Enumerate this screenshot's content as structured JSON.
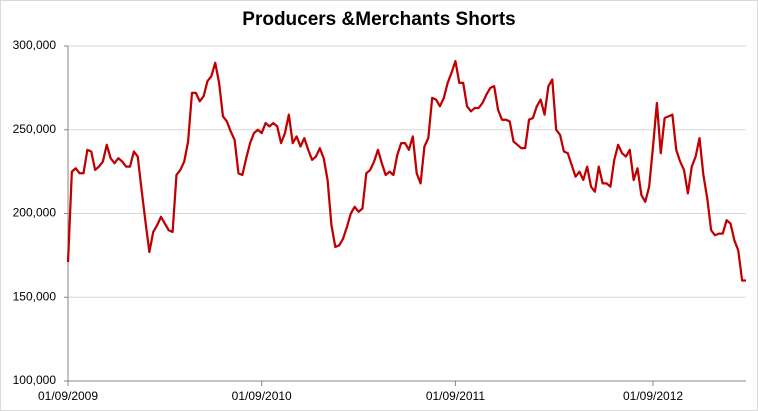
{
  "chart_data": {
    "type": "line",
    "title": "Producers &Merchants Shorts",
    "categories": [
      "01/09/2009",
      null,
      null,
      null,
      null,
      null,
      null,
      null,
      null,
      null,
      null,
      null,
      null,
      null,
      null,
      null,
      null,
      null,
      null,
      null,
      null,
      null,
      null,
      null,
      null,
      null,
      null,
      null,
      null,
      null,
      null,
      null,
      null,
      null,
      null,
      null,
      null,
      null,
      null,
      null,
      null,
      null,
      null,
      null,
      null,
      null,
      null,
      null,
      null,
      null,
      "01/09/2010",
      null,
      null,
      null,
      null,
      null,
      null,
      null,
      null,
      null,
      null,
      null,
      null,
      null,
      null,
      null,
      null,
      null,
      null,
      null,
      null,
      null,
      null,
      null,
      null,
      null,
      null,
      null,
      null,
      null,
      null,
      null,
      null,
      null,
      null,
      null,
      null,
      null,
      null,
      null,
      null,
      null,
      null,
      null,
      null,
      null,
      null,
      null,
      null,
      null,
      "01/09/2011",
      null,
      null,
      null,
      null,
      null,
      null,
      null,
      null,
      null,
      null,
      null,
      null,
      null,
      null,
      null,
      null,
      null,
      null,
      null,
      null,
      null,
      null,
      null,
      null,
      null,
      null,
      null,
      null,
      null,
      null,
      null,
      null,
      null,
      null,
      null,
      null,
      null,
      null,
      null,
      null,
      null,
      null,
      null,
      null,
      null,
      null,
      null,
      null,
      null,
      null,
      "01/09/2012",
      null,
      null,
      null,
      null,
      null,
      null,
      null,
      null,
      null,
      null,
      null,
      null,
      null,
      null,
      null,
      null,
      null,
      null,
      null,
      null,
      null,
      null,
      null,
      null
    ],
    "series": [
      {
        "color": "#c00000",
        "values": [
          171000,
          225000,
          227000,
          224000,
          224000,
          238000,
          237000,
          226000,
          228000,
          231000,
          241000,
          233000,
          230000,
          233000,
          231000,
          228000,
          228000,
          237000,
          234000,
          214000,
          195000,
          177000,
          189000,
          193000,
          198000,
          194000,
          190000,
          189000,
          223000,
          226000,
          231000,
          243000,
          272000,
          272000,
          267000,
          270000,
          279000,
          282000,
          290000,
          278000,
          258000,
          255000,
          249000,
          244000,
          224000,
          223000,
          233000,
          242000,
          248000,
          250000,
          248000,
          254000,
          252000,
          254000,
          252000,
          242000,
          248000,
          259000,
          242000,
          246000,
          240000,
          245000,
          238000,
          232000,
          234000,
          239000,
          233000,
          220000,
          193000,
          180000,
          181000,
          185000,
          192000,
          200000,
          204000,
          201000,
          203000,
          224000,
          226000,
          231000,
          238000,
          230000,
          223000,
          225000,
          223000,
          235000,
          242000,
          242000,
          238000,
          246000,
          224000,
          218000,
          240000,
          245000,
          269000,
          268000,
          264000,
          269000,
          278000,
          284000,
          291000,
          278000,
          278000,
          264000,
          261000,
          263000,
          263000,
          266000,
          271000,
          275000,
          276000,
          262000,
          256000,
          256000,
          255000,
          243000,
          241000,
          239000,
          239000,
          256000,
          257000,
          264000,
          268000,
          259000,
          276000,
          280000,
          250000,
          247000,
          237000,
          236000,
          229000,
          222000,
          225000,
          220000,
          228000,
          216000,
          213000,
          228000,
          218000,
          218000,
          216000,
          232000,
          241000,
          236000,
          234000,
          238000,
          220000,
          227000,
          211000,
          207000,
          216000,
          240000,
          266000,
          236000,
          257000,
          258000,
          259000,
          238000,
          231000,
          226000,
          212000,
          228000,
          234000,
          245000,
          223000,
          209000,
          190000,
          187000,
          188000,
          188000,
          196000,
          194000,
          184000,
          178000,
          160000,
          160000
        ]
      }
    ],
    "ylim": [
      100000,
      300000
    ],
    "yticks": [
      {
        "value": 100000,
        "label": "100,000"
      },
      {
        "value": 150000,
        "label": "150,000"
      },
      {
        "value": 200000,
        "label": "200,000"
      },
      {
        "value": 250000,
        "label": "250,000"
      },
      {
        "value": 300000,
        "label": "300,000"
      }
    ],
    "grid": true
  }
}
